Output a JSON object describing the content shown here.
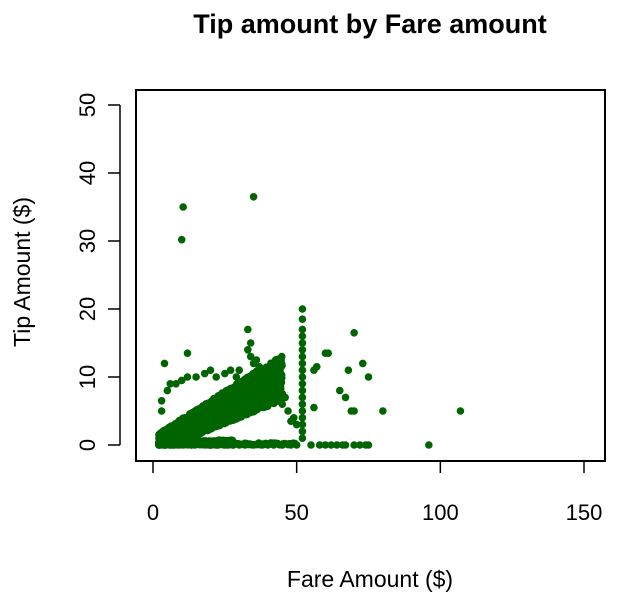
{
  "chart_data": {
    "type": "scatter",
    "title": "Tip amount by Fare amount",
    "xlabel": "Fare Amount ($)",
    "ylabel": "Tip Amount ($)",
    "xlim": [
      0,
      150
    ],
    "ylim": [
      0,
      50
    ],
    "x_ticks": [
      "0",
      "50",
      "100",
      "150"
    ],
    "y_ticks": [
      "0",
      "10",
      "20",
      "30",
      "40",
      "50"
    ],
    "point_color": "#006400",
    "grid": false,
    "legend": "none",
    "points": [
      [
        35,
        36.5
      ],
      [
        10.5,
        35
      ],
      [
        10,
        30.2
      ],
      [
        52,
        20
      ],
      [
        52,
        18.5
      ],
      [
        52,
        17
      ],
      [
        52,
        16
      ],
      [
        52,
        15
      ],
      [
        52,
        14
      ],
      [
        52,
        13
      ],
      [
        52,
        12
      ],
      [
        52,
        11
      ],
      [
        52,
        10
      ],
      [
        52,
        9
      ],
      [
        52,
        8
      ],
      [
        52,
        7
      ],
      [
        52,
        6
      ],
      [
        52,
        5
      ],
      [
        52,
        4
      ],
      [
        52,
        3
      ],
      [
        52,
        2
      ],
      [
        52,
        1
      ],
      [
        33,
        17
      ],
      [
        34,
        15
      ],
      [
        33,
        14
      ],
      [
        34,
        13
      ],
      [
        36,
        12.5
      ],
      [
        35,
        12
      ],
      [
        37,
        11.5
      ],
      [
        38,
        10.5
      ],
      [
        40,
        11
      ],
      [
        36,
        10
      ],
      [
        39,
        9
      ],
      [
        41,
        8.5
      ],
      [
        42,
        9.5
      ],
      [
        44,
        8
      ],
      [
        45,
        6
      ],
      [
        46,
        7
      ],
      [
        47,
        5
      ],
      [
        48,
        3.5
      ],
      [
        49,
        4
      ],
      [
        50,
        3
      ],
      [
        12,
        13.5
      ],
      [
        4,
        12
      ],
      [
        3,
        6.5
      ],
      [
        3,
        5
      ],
      [
        5,
        8
      ],
      [
        6,
        9
      ],
      [
        8,
        9
      ],
      [
        10,
        9.5
      ],
      [
        12,
        10
      ],
      [
        15,
        10
      ],
      [
        18,
        10.5
      ],
      [
        20,
        11
      ],
      [
        22,
        10
      ],
      [
        25,
        10.5
      ],
      [
        27,
        11
      ],
      [
        29,
        10
      ],
      [
        30,
        11
      ],
      [
        31,
        9
      ],
      [
        30,
        7
      ],
      [
        70,
        16.5
      ],
      [
        68,
        11
      ],
      [
        73,
        12
      ],
      [
        69,
        5
      ],
      [
        67,
        7
      ],
      [
        75,
        10
      ],
      [
        61,
        13.5
      ],
      [
        60,
        13.5
      ],
      [
        57,
        11.5
      ],
      [
        56,
        11
      ],
      [
        56,
        5.5
      ],
      [
        70,
        5
      ],
      [
        80,
        5
      ],
      [
        107,
        5
      ],
      [
        65,
        8
      ],
      [
        55,
        0
      ],
      [
        58,
        0
      ],
      [
        60,
        0
      ],
      [
        62,
        0
      ],
      [
        64,
        0
      ],
      [
        66,
        0
      ],
      [
        67,
        0
      ],
      [
        70,
        0
      ],
      [
        72,
        0
      ],
      [
        74,
        0
      ],
      [
        75,
        0
      ],
      [
        96,
        0
      ],
      [
        20,
        0
      ],
      [
        22,
        0
      ],
      [
        25,
        0
      ],
      [
        28,
        0
      ],
      [
        30,
        0
      ],
      [
        32,
        0
      ],
      [
        35,
        0
      ],
      [
        38,
        0
      ],
      [
        40,
        0
      ],
      [
        42,
        0
      ],
      [
        45,
        0
      ],
      [
        48,
        0
      ],
      [
        50,
        0
      ]
    ],
    "dense_regions": [
      {
        "x_range": [
          2,
          45
        ],
        "y_base": 0,
        "slope": 0.22,
        "spread": 4.5,
        "count": 1400
      },
      {
        "x_range": [
          2,
          28
        ],
        "y_base": 0,
        "slope": 0.0,
        "spread": 1.4,
        "count": 500
      }
    ]
  }
}
